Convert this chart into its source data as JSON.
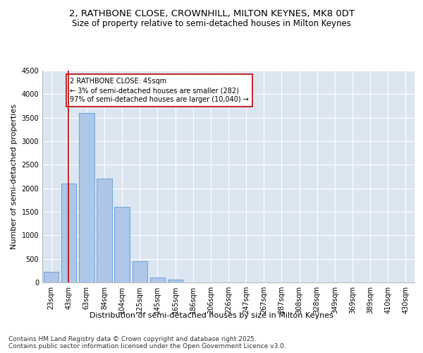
{
  "title1": "2, RATHBONE CLOSE, CROWNHILL, MILTON KEYNES, MK8 0DT",
  "title2": "Size of property relative to semi-detached houses in Milton Keynes",
  "xlabel": "Distribution of semi-detached houses by size in Milton Keynes",
  "ylabel": "Number of semi-detached properties",
  "categories": [
    "23sqm",
    "43sqm",
    "63sqm",
    "84sqm",
    "104sqm",
    "125sqm",
    "145sqm",
    "165sqm",
    "186sqm",
    "206sqm",
    "226sqm",
    "247sqm",
    "267sqm",
    "287sqm",
    "308sqm",
    "328sqm",
    "349sqm",
    "369sqm",
    "389sqm",
    "410sqm",
    "430sqm"
  ],
  "values": [
    230,
    2100,
    3600,
    2200,
    1600,
    450,
    100,
    60,
    0,
    0,
    0,
    0,
    0,
    0,
    0,
    0,
    0,
    0,
    0,
    0,
    0
  ],
  "bar_color": "#aec6e8",
  "bar_edge_color": "#5b9bd5",
  "background_color": "#dce6f1",
  "annotation_text": "2 RATHBONE CLOSE: 45sqm\n← 3% of semi-detached houses are smaller (282)\n97% of semi-detached houses are larger (10,040) →",
  "vline_x": 0.97,
  "vline_color": "#c00000",
  "box_color": "#c00000",
  "ylim": [
    0,
    4500
  ],
  "yticks": [
    0,
    500,
    1000,
    1500,
    2000,
    2500,
    3000,
    3500,
    4000,
    4500
  ],
  "footnote": "Contains HM Land Registry data © Crown copyright and database right 2025.\nContains public sector information licensed under the Open Government Licence v3.0.",
  "title_fontsize": 9.5,
  "subtitle_fontsize": 8.5,
  "axis_label_fontsize": 8,
  "tick_fontsize": 7,
  "annotation_fontsize": 7,
  "footnote_fontsize": 6.5
}
